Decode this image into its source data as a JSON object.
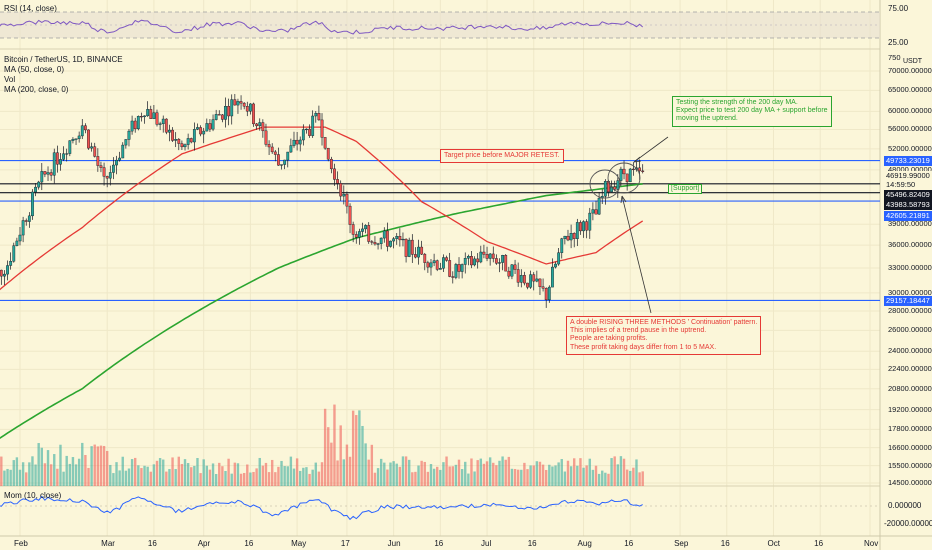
{
  "rsi": {
    "label": "RSI (14, close)",
    "levels": [
      "75.00",
      "25.00"
    ]
  },
  "header": {
    "symbol": "Bitcoin / TetherUS, 1D, BINANCE",
    "ma50": "MA (50, close, 0)",
    "vol": "Vol",
    "ma200": "MA (200, close, 0)"
  },
  "mom": {
    "label": "Mom (10, close)",
    "ticks": [
      "0.000000",
      "-20000.000000"
    ]
  },
  "currency": "USDT",
  "price_axis": [
    "750",
    "70000.000000",
    "65000.000000",
    "60000.000000",
    "56000.000000",
    "52000.000000",
    "48000.000000",
    "39000.000000",
    "36000.000000",
    "33000.000000",
    "30000.000000",
    "28000.000000",
    "26000.000000",
    "24000.000000",
    "22400.000000",
    "20800.000000",
    "19200.000000",
    "17800.000000",
    "16600.000000",
    "15500.000000",
    "14500.000000"
  ],
  "price_boxes": {
    "level1": "49733.23019",
    "current": "46919.99000",
    "countdown": "14:59:50",
    "ma200": "45496.82409",
    "level2": "43983.58793",
    "level3": "42605.21891",
    "level4": "29157.18447"
  },
  "time_axis": [
    "Feb",
    "Mar",
    "16",
    "Apr",
    "16",
    "May",
    "17",
    "Jun",
    "16",
    "Jul",
    "16",
    "Aug",
    "16",
    "Sep",
    "16",
    "Oct",
    "16",
    "Nov"
  ],
  "annotations": {
    "target": "Target price before MAJOR RETEST.",
    "testing": "Testing the strength of the 200 day MA.\nExpect price to test 200 day MA + support before\nmoving the uptrend.",
    "support": "[Support]",
    "pattern": "A double RISING THREE METHODS ' Continuation' pattern.\nThis implies of a trend pause in the uptrend.\nPeople are taking profits.\nThese profit taking days differ from 1 to 5 MAX."
  },
  "colors": {
    "background": "#fbf6d9",
    "ma50": "#e53935",
    "ma200": "#2ba52f",
    "up": "#26a69a",
    "down": "#ef5350",
    "hline": "#2962ff",
    "rsi": "#7e57c2",
    "mom": "#2962ff"
  },
  "chart_data": {
    "type": "candlestick",
    "symbol": "BTCUSDT",
    "interval": "1D",
    "xlabels": [
      "Feb",
      "Mar",
      "16",
      "Apr",
      "16",
      "May",
      "17",
      "Jun",
      "16",
      "Jul",
      "16",
      "Aug",
      "16",
      "Sep",
      "16",
      "Oct",
      "16",
      "Nov"
    ],
    "price_range": [
      14000,
      75000
    ],
    "horizontal_levels": [
      49733.23019,
      43983.58793,
      42605.21891,
      29157.18447
    ],
    "close_anchors": [
      {
        "d": "Jan 21",
        "c": 30800
      },
      {
        "d": "Jan 28",
        "c": 33500
      },
      {
        "d": "Feb 08",
        "c": 46200
      },
      {
        "d": "Feb 21",
        "c": 57000
      },
      {
        "d": "Feb 28",
        "c": 45500
      },
      {
        "d": "Mar 13",
        "c": 61000
      },
      {
        "d": "Mar 25",
        "c": 52000
      },
      {
        "d": "Apr 13",
        "c": 63500
      },
      {
        "d": "Apr 25",
        "c": 49000
      },
      {
        "d": "May 08",
        "c": 58500
      },
      {
        "d": "May 12",
        "c": 49500
      },
      {
        "d": "May 19",
        "c": 38000
      },
      {
        "d": "Jun 01",
        "c": 36500
      },
      {
        "d": "Jun 21",
        "c": 32500
      },
      {
        "d": "Jul 01",
        "c": 35000
      },
      {
        "d": "Jul 20",
        "c": 29800
      },
      {
        "d": "Jul 26",
        "c": 37000
      },
      {
        "d": "Aug 05",
        "c": 40500
      },
      {
        "d": "Aug 08",
        "c": 44500
      },
      {
        "d": "Aug 14",
        "c": 47500
      },
      {
        "d": "Aug 20",
        "c": 46920
      }
    ],
    "ma50_anchors": [
      {
        "d": "Jan 21",
        "c": 29000
      },
      {
        "d": "Feb 21",
        "c": 38500
      },
      {
        "d": "Mar 25",
        "c": 51000
      },
      {
        "d": "Apr 20",
        "c": 56500
      },
      {
        "d": "May 10",
        "c": 56500
      },
      {
        "d": "May 20",
        "c": 53500
      },
      {
        "d": "Jun 10",
        "c": 42500
      },
      {
        "d": "Jul 01",
        "c": 36500
      },
      {
        "d": "Jul 20",
        "c": 33500
      },
      {
        "d": "Aug 05",
        "c": 35000
      },
      {
        "d": "Aug 20",
        "c": 39500
      }
    ],
    "ma200_anchors": [
      {
        "d": "Jan 21",
        "c": 16600
      },
      {
        "d": "Feb 21",
        "c": 20800
      },
      {
        "d": "Mar 25",
        "c": 27000
      },
      {
        "d": "Apr 25",
        "c": 33000
      },
      {
        "d": "May 20",
        "c": 37000
      },
      {
        "d": "Jun 20",
        "c": 40500
      },
      {
        "d": "Jul 20",
        "c": 43500
      },
      {
        "d": "Aug 20",
        "c": 45497
      }
    ]
  }
}
